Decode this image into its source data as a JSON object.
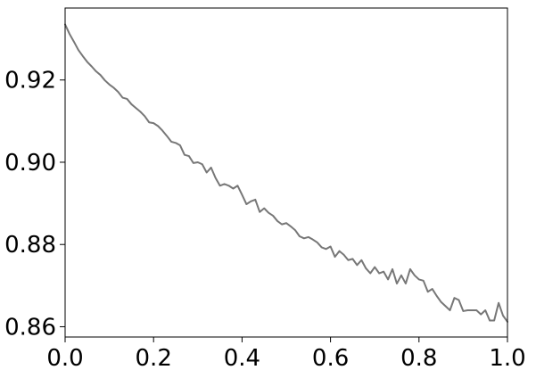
{
  "chart_data": {
    "type": "line",
    "title": "",
    "xlabel": "",
    "ylabel": "",
    "xlim": [
      0.0,
      1.0
    ],
    "ylim": [
      0.8575,
      0.9375
    ],
    "x_ticks": [
      0.0,
      0.2,
      0.4,
      0.6,
      0.8,
      1.0
    ],
    "x_tick_labels": [
      "0.0",
      "0.2",
      "0.4",
      "0.6",
      "0.8",
      "1.0"
    ],
    "y_ticks": [
      0.86,
      0.88,
      0.9,
      0.92
    ],
    "y_tick_labels": [
      "0.86",
      "0.88",
      "0.90",
      "0.92"
    ],
    "grid": false,
    "legend": "none",
    "series": [
      {
        "color": "#777777",
        "x": [
          0.0,
          0.01,
          0.02,
          0.03,
          0.04,
          0.05,
          0.06,
          0.07,
          0.08,
          0.09,
          0.1,
          0.11,
          0.12,
          0.13,
          0.14,
          0.15,
          0.16,
          0.17,
          0.18,
          0.19,
          0.2,
          0.21,
          0.22,
          0.23,
          0.24,
          0.25,
          0.26,
          0.27,
          0.28,
          0.29,
          0.3,
          0.31,
          0.32,
          0.33,
          0.34,
          0.35,
          0.36,
          0.37,
          0.38,
          0.39,
          0.4,
          0.41,
          0.42,
          0.43,
          0.44,
          0.45,
          0.46,
          0.47,
          0.48,
          0.49,
          0.5,
          0.51,
          0.52,
          0.53,
          0.54,
          0.55,
          0.56,
          0.57,
          0.58,
          0.59,
          0.6,
          0.61,
          0.62,
          0.63,
          0.64,
          0.65,
          0.66,
          0.67,
          0.68,
          0.69,
          0.7,
          0.71,
          0.72,
          0.73,
          0.74,
          0.75,
          0.76,
          0.77,
          0.78,
          0.79,
          0.8,
          0.81,
          0.82,
          0.83,
          0.84,
          0.85,
          0.86,
          0.87,
          0.88,
          0.89,
          0.9,
          0.91,
          0.92,
          0.93,
          0.94,
          0.95,
          0.96,
          0.97,
          0.98,
          0.99,
          1.0
        ],
        "y": [
          0.9335,
          0.9312,
          0.9293,
          0.9273,
          0.9258,
          0.9244,
          0.9233,
          0.9221,
          0.9212,
          0.9199,
          0.9189,
          0.9181,
          0.9171,
          0.9157,
          0.9154,
          0.9141,
          0.9132,
          0.9123,
          0.9112,
          0.9097,
          0.9095,
          0.9088,
          0.9077,
          0.9064,
          0.905,
          0.9047,
          0.9041,
          0.9018,
          0.9015,
          0.8998,
          0.9,
          0.8995,
          0.8975,
          0.8987,
          0.8962,
          0.8943,
          0.8947,
          0.8943,
          0.8936,
          0.8943,
          0.8921,
          0.8898,
          0.8905,
          0.8909,
          0.8879,
          0.8888,
          0.8877,
          0.887,
          0.8857,
          0.8849,
          0.8852,
          0.8844,
          0.8835,
          0.882,
          0.8815,
          0.8818,
          0.8812,
          0.8805,
          0.8793,
          0.8789,
          0.8795,
          0.877,
          0.8784,
          0.8775,
          0.8762,
          0.8765,
          0.875,
          0.8762,
          0.8742,
          0.873,
          0.8745,
          0.873,
          0.8734,
          0.8715,
          0.874,
          0.8705,
          0.8725,
          0.8705,
          0.874,
          0.8725,
          0.8715,
          0.8712,
          0.8685,
          0.8692,
          0.8675,
          0.866,
          0.865,
          0.864,
          0.867,
          0.8665,
          0.8638,
          0.864,
          0.864,
          0.864,
          0.863,
          0.864,
          0.8615,
          0.8615,
          0.8658,
          0.8627,
          0.8612
        ]
      }
    ]
  }
}
